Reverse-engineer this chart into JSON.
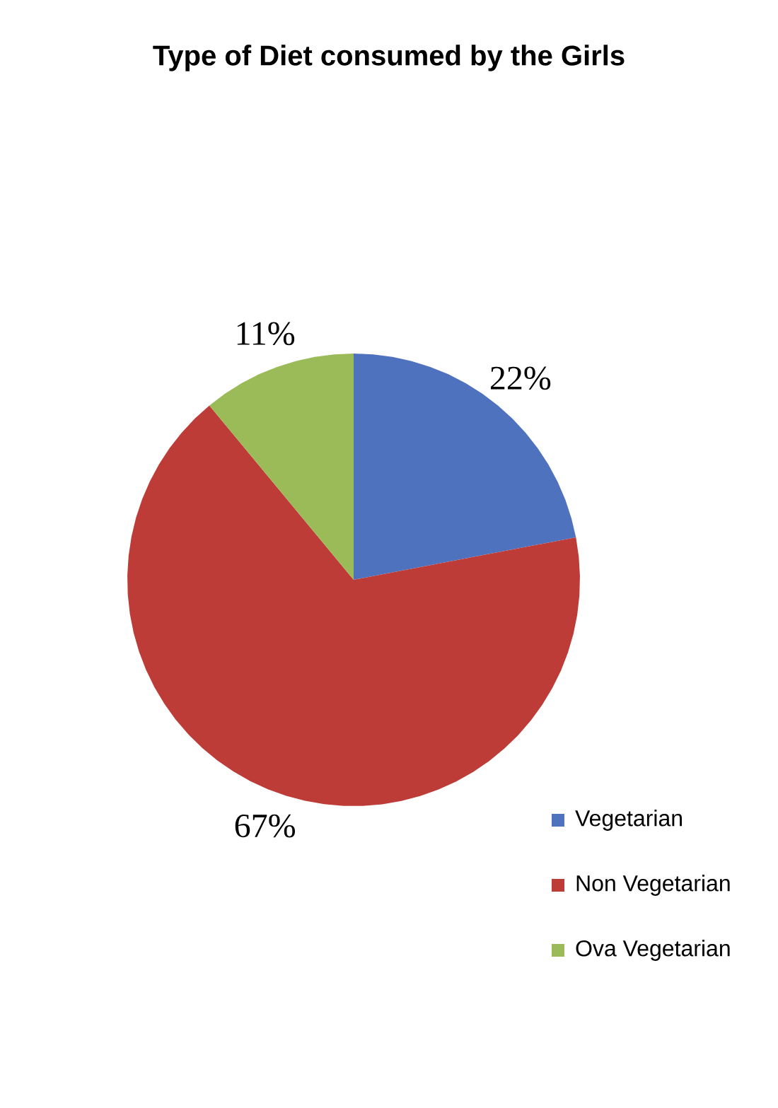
{
  "chart_data": {
    "type": "pie",
    "title": "Type of Diet consumed by the Girls",
    "categories": [
      "Vegetarian",
      "Non Vegetarian",
      "Ova Vegetarian"
    ],
    "values": [
      22,
      67,
      11
    ],
    "colors": [
      "#4f72be",
      "#be3c38",
      "#9bbb59"
    ],
    "value_labels": [
      "22%",
      "67%",
      "11%"
    ],
    "legend": "right"
  }
}
